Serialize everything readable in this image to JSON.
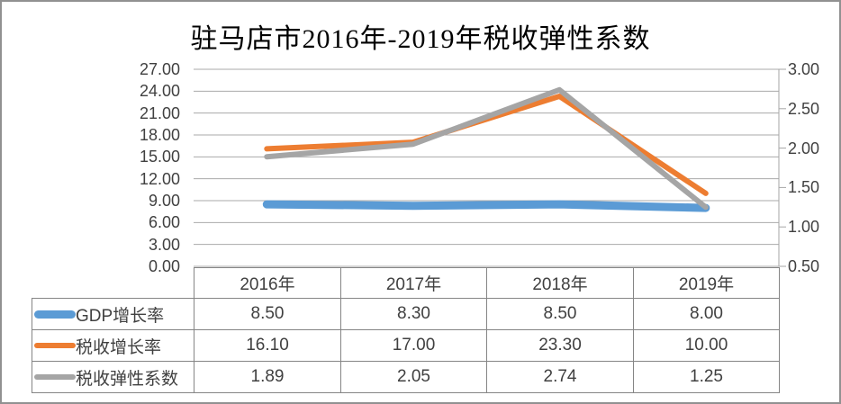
{
  "title": "驻马店市2016年-2019年税收弹性系数",
  "chart_data": {
    "type": "line",
    "categories": [
      "2016年",
      "2017年",
      "2018年",
      "2019年"
    ],
    "series": [
      {
        "name": "GDP增长率",
        "axis": "left",
        "color": "#5B9BD5",
        "line_width": 9,
        "values": [
          8.5,
          8.3,
          8.5,
          8.0
        ],
        "display": [
          "8.50",
          "8.30",
          "8.50",
          "8.00"
        ]
      },
      {
        "name": "税收增长率",
        "axis": "left",
        "color": "#ED7D31",
        "line_width": 6,
        "values": [
          16.1,
          17.0,
          23.3,
          10.0
        ],
        "display": [
          "16.10",
          "17.00",
          "23.30",
          "10.00"
        ]
      },
      {
        "name": "税收弹性系数",
        "axis": "right",
        "color": "#A5A5A5",
        "line_width": 6,
        "values": [
          1.89,
          2.05,
          2.74,
          1.25
        ],
        "display": [
          "1.89",
          "2.05",
          "2.74",
          "1.25"
        ]
      }
    ],
    "left_axis": {
      "min": 0,
      "max": 27,
      "step": 3,
      "tick_labels": [
        "0.00",
        "3.00",
        "6.00",
        "9.00",
        "12.00",
        "15.00",
        "18.00",
        "21.00",
        "24.00",
        "27.00"
      ]
    },
    "right_axis": {
      "min": 0.5,
      "max": 3.0,
      "step": 0.5,
      "tick_labels": [
        "0.50",
        "1.00",
        "1.50",
        "2.00",
        "2.50",
        "3.00"
      ]
    },
    "grid": true,
    "legend_position": "table-left",
    "colors": {
      "grid": "#A9A9A9",
      "axis": "#A6A6A6",
      "table_border": "#858585",
      "outer_border": "#919191"
    }
  },
  "table": {
    "note": "legend keys shown at left of each series row"
  }
}
